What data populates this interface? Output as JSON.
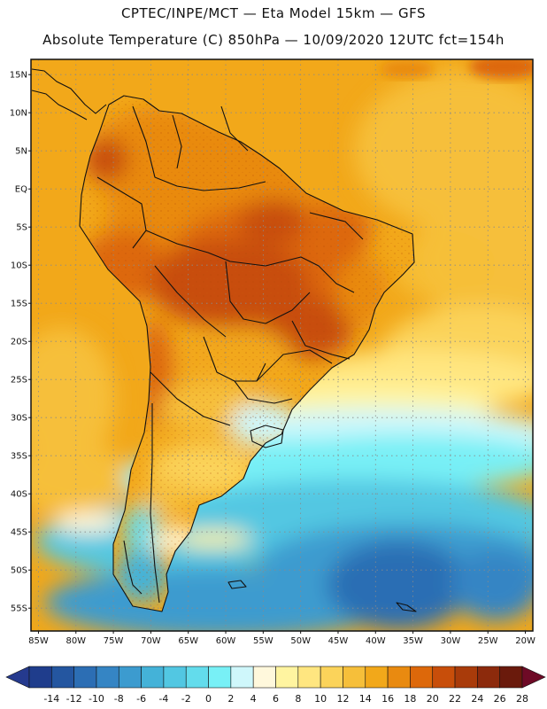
{
  "header": {
    "title_line1": "CPTEC/INPE/MCT —  Eta Model 15km — GFS",
    "title_line2": "Absolute Temperature (C) 850hPa — 10/09/2020 12UTC fct=154h"
  },
  "map": {
    "lon_range": [
      -86,
      -19
    ],
    "lat_range": [
      -58,
      17
    ],
    "lat_ticks": [
      "15N",
      "10N",
      "5N",
      "EQ",
      "5S",
      "10S",
      "15S",
      "20S",
      "25S",
      "30S",
      "35S",
      "40S",
      "45S",
      "50S",
      "55S"
    ],
    "lat_values": [
      15,
      10,
      5,
      0,
      -5,
      -10,
      -15,
      -20,
      -25,
      -30,
      -35,
      -40,
      -45,
      -50,
      -55
    ],
    "lon_ticks": [
      "85W",
      "80W",
      "75W",
      "70W",
      "65W",
      "60W",
      "55W",
      "50W",
      "45W",
      "40W",
      "35W",
      "30W",
      "25W",
      "20W"
    ],
    "lon_values": [
      -85,
      -80,
      -75,
      -70,
      -65,
      -60,
      -55,
      -50,
      -45,
      -40,
      -35,
      -30,
      -25,
      -20
    ]
  },
  "colorbar": {
    "labels": [
      "-14",
      "-12",
      "-10",
      "-8",
      "-6",
      "-4",
      "-2",
      "0",
      "2",
      "4",
      "6",
      "8",
      "10",
      "12",
      "14",
      "16",
      "18",
      "20",
      "22",
      "24",
      "26",
      "28"
    ],
    "colors": [
      "#1f3d8c",
      "#2456a0",
      "#2c6eb4",
      "#3585c4",
      "#3c9bcf",
      "#44b2d8",
      "#52c7e2",
      "#63dcec",
      "#78f0f6",
      "#cff7fb",
      "#fff8dc",
      "#fff4a0",
      "#ffe680",
      "#fbd35a",
      "#f6bf3a",
      "#f2a81a",
      "#e98a10",
      "#dd680a",
      "#c84e0a",
      "#a93b0a",
      "#8c2a0c",
      "#6a1a0c"
    ],
    "under_color": "#253a8e",
    "over_color": "#6e0a26"
  }
}
